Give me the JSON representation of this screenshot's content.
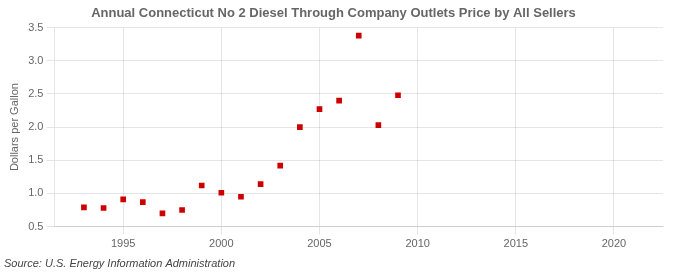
{
  "chart_data": {
    "type": "scatter",
    "title": "Annual Connecticut No 2 Diesel Through Company Outlets Price by All Sellers",
    "ylabel": "Dollars per Gallon",
    "source": "Source: U.S. Energy Information Administration",
    "x": [
      1993,
      1994,
      1995,
      1996,
      1997,
      1998,
      1999,
      2000,
      2001,
      2002,
      2003,
      2004,
      2005,
      2006,
      2007,
      2008,
      2009
    ],
    "values": [
      0.79,
      0.78,
      0.91,
      0.87,
      0.7,
      0.75,
      1.12,
      1.01,
      0.95,
      1.14,
      1.42,
      2.0,
      2.27,
      2.4,
      3.38,
      2.03,
      2.48
    ],
    "color": "#cc0000",
    "marker": "square",
    "xlim": [
      1991.5,
      2022.5
    ],
    "ylim": [
      0.5,
      3.5
    ],
    "xticks": [
      1995,
      2000,
      2005,
      2010,
      2015,
      2020
    ],
    "yticks": [
      0.5,
      {
        "value": 1.0,
        "label": "1.0"
      },
      1.5,
      {
        "value": 2.0,
        "label": "2.0"
      },
      2.5,
      {
        "value": 3.0,
        "label": "3.0"
      },
      3.5
    ],
    "grid": true
  }
}
